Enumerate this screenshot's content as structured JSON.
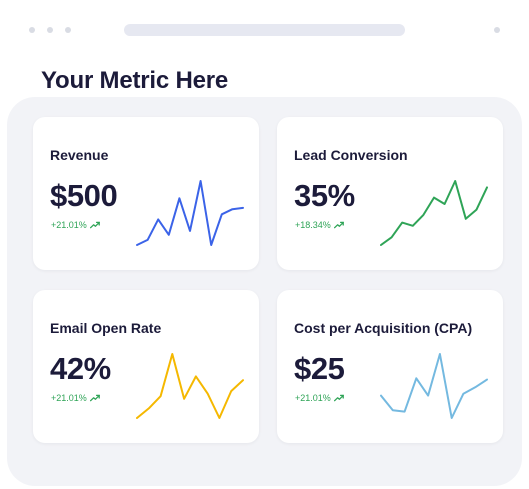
{
  "window": {
    "title": "Your Metric Here"
  },
  "cards": [
    {
      "title": "Revenue",
      "value": "$500",
      "change": "+21.01%",
      "change_icon": "trend-up-icon",
      "line_color": "#3b63e8",
      "sparkline": [
        0.0,
        0.08,
        0.4,
        0.16,
        0.73,
        0.22,
        1.0,
        0.0,
        0.48,
        0.56,
        0.58
      ]
    },
    {
      "title": "Lead Conversion",
      "value": "35%",
      "change": "+18.34%",
      "change_icon": "trend-up-icon",
      "line_color": "#2fa457",
      "sparkline": [
        0.0,
        0.12,
        0.35,
        0.3,
        0.47,
        0.74,
        0.64,
        1.0,
        0.41,
        0.55,
        0.9
      ]
    },
    {
      "title": "Email Open Rate",
      "value": "42%",
      "change": "+21.01%",
      "change_icon": "trend-up-icon",
      "line_color": "#f5b800",
      "sparkline": [
        0.0,
        0.15,
        0.34,
        1.0,
        0.3,
        0.65,
        0.38,
        0.0,
        0.42,
        0.59
      ]
    },
    {
      "title": "Cost per Acquisition (CPA)",
      "value": "$25",
      "change": "+21.01%",
      "change_icon": "trend-up-icon",
      "line_color": "#74b9e0",
      "sparkline": [
        0.35,
        0.12,
        0.1,
        0.62,
        0.35,
        1.0,
        0.0,
        0.38,
        0.48,
        0.6
      ]
    }
  ]
}
